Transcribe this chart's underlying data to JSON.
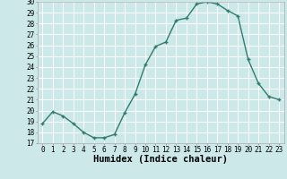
{
  "x": [
    0,
    1,
    2,
    3,
    4,
    5,
    6,
    7,
    8,
    9,
    10,
    11,
    12,
    13,
    14,
    15,
    16,
    17,
    18,
    19,
    20,
    21,
    22,
    23
  ],
  "y": [
    18.8,
    19.9,
    19.5,
    18.8,
    18.0,
    17.5,
    17.5,
    17.8,
    19.8,
    21.5,
    24.2,
    25.9,
    26.3,
    28.3,
    28.5,
    29.8,
    30.0,
    29.8,
    29.2,
    28.7,
    24.7,
    22.5,
    21.3,
    21.0
  ],
  "line_color": "#2e7d6e",
  "marker": "+",
  "bg_color": "#cce8e8",
  "grid_color": "#ffffff",
  "xlabel": "Humidex (Indice chaleur)",
  "ylim": [
    17,
    30
  ],
  "xlim": [
    -0.5,
    23.5
  ],
  "yticks": [
    17,
    18,
    19,
    20,
    21,
    22,
    23,
    24,
    25,
    26,
    27,
    28,
    29,
    30
  ],
  "xticks": [
    0,
    1,
    2,
    3,
    4,
    5,
    6,
    7,
    8,
    9,
    10,
    11,
    12,
    13,
    14,
    15,
    16,
    17,
    18,
    19,
    20,
    21,
    22,
    23
  ],
  "tick_label_fontsize": 5.5,
  "xlabel_fontsize": 7.5,
  "line_width": 1.0,
  "marker_size": 3.5
}
